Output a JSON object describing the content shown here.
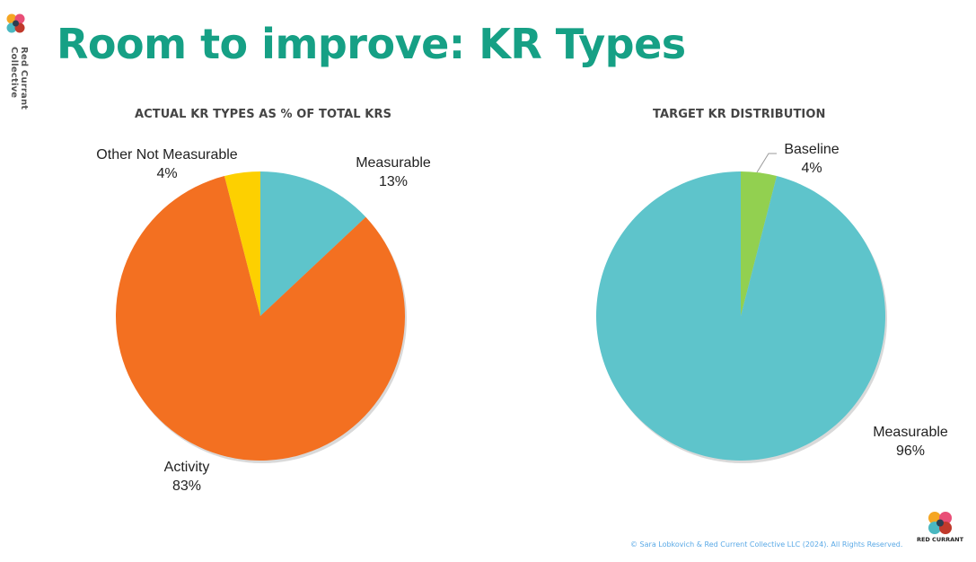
{
  "page": {
    "title": "Room to improve: KR Types",
    "brand_vertical": "Red Currant Collective",
    "footer": "© Sara Lobkovich & Red Current Collective LLC (2024). All Rights Reserved.",
    "logo_text": "RED CURRANT"
  },
  "colors": {
    "title": "#16a085",
    "measurable": "#5ec4cb",
    "activity": "#f37021",
    "other": "#fdd000",
    "baseline": "#92d050"
  },
  "chart_data": [
    {
      "type": "pie",
      "title": "ACTUAL KR TYPES AS % OF TOTAL KRS",
      "slices": [
        {
          "name": "Measurable",
          "value": 13,
          "label": "13%",
          "color": "#5ec4cb"
        },
        {
          "name": "Activity",
          "value": 83,
          "label": "83%",
          "color": "#f37021"
        },
        {
          "name": "Other Not Measurable",
          "value": 4,
          "label": "4%",
          "color": "#fdd000"
        }
      ]
    },
    {
      "type": "pie",
      "title": "TARGET KR DISTRIBUTION",
      "slices": [
        {
          "name": "Baseline",
          "value": 4,
          "label": "4%",
          "color": "#92d050"
        },
        {
          "name": "Measurable",
          "value": 96,
          "label": "96%",
          "color": "#5ec4cb"
        }
      ]
    }
  ]
}
